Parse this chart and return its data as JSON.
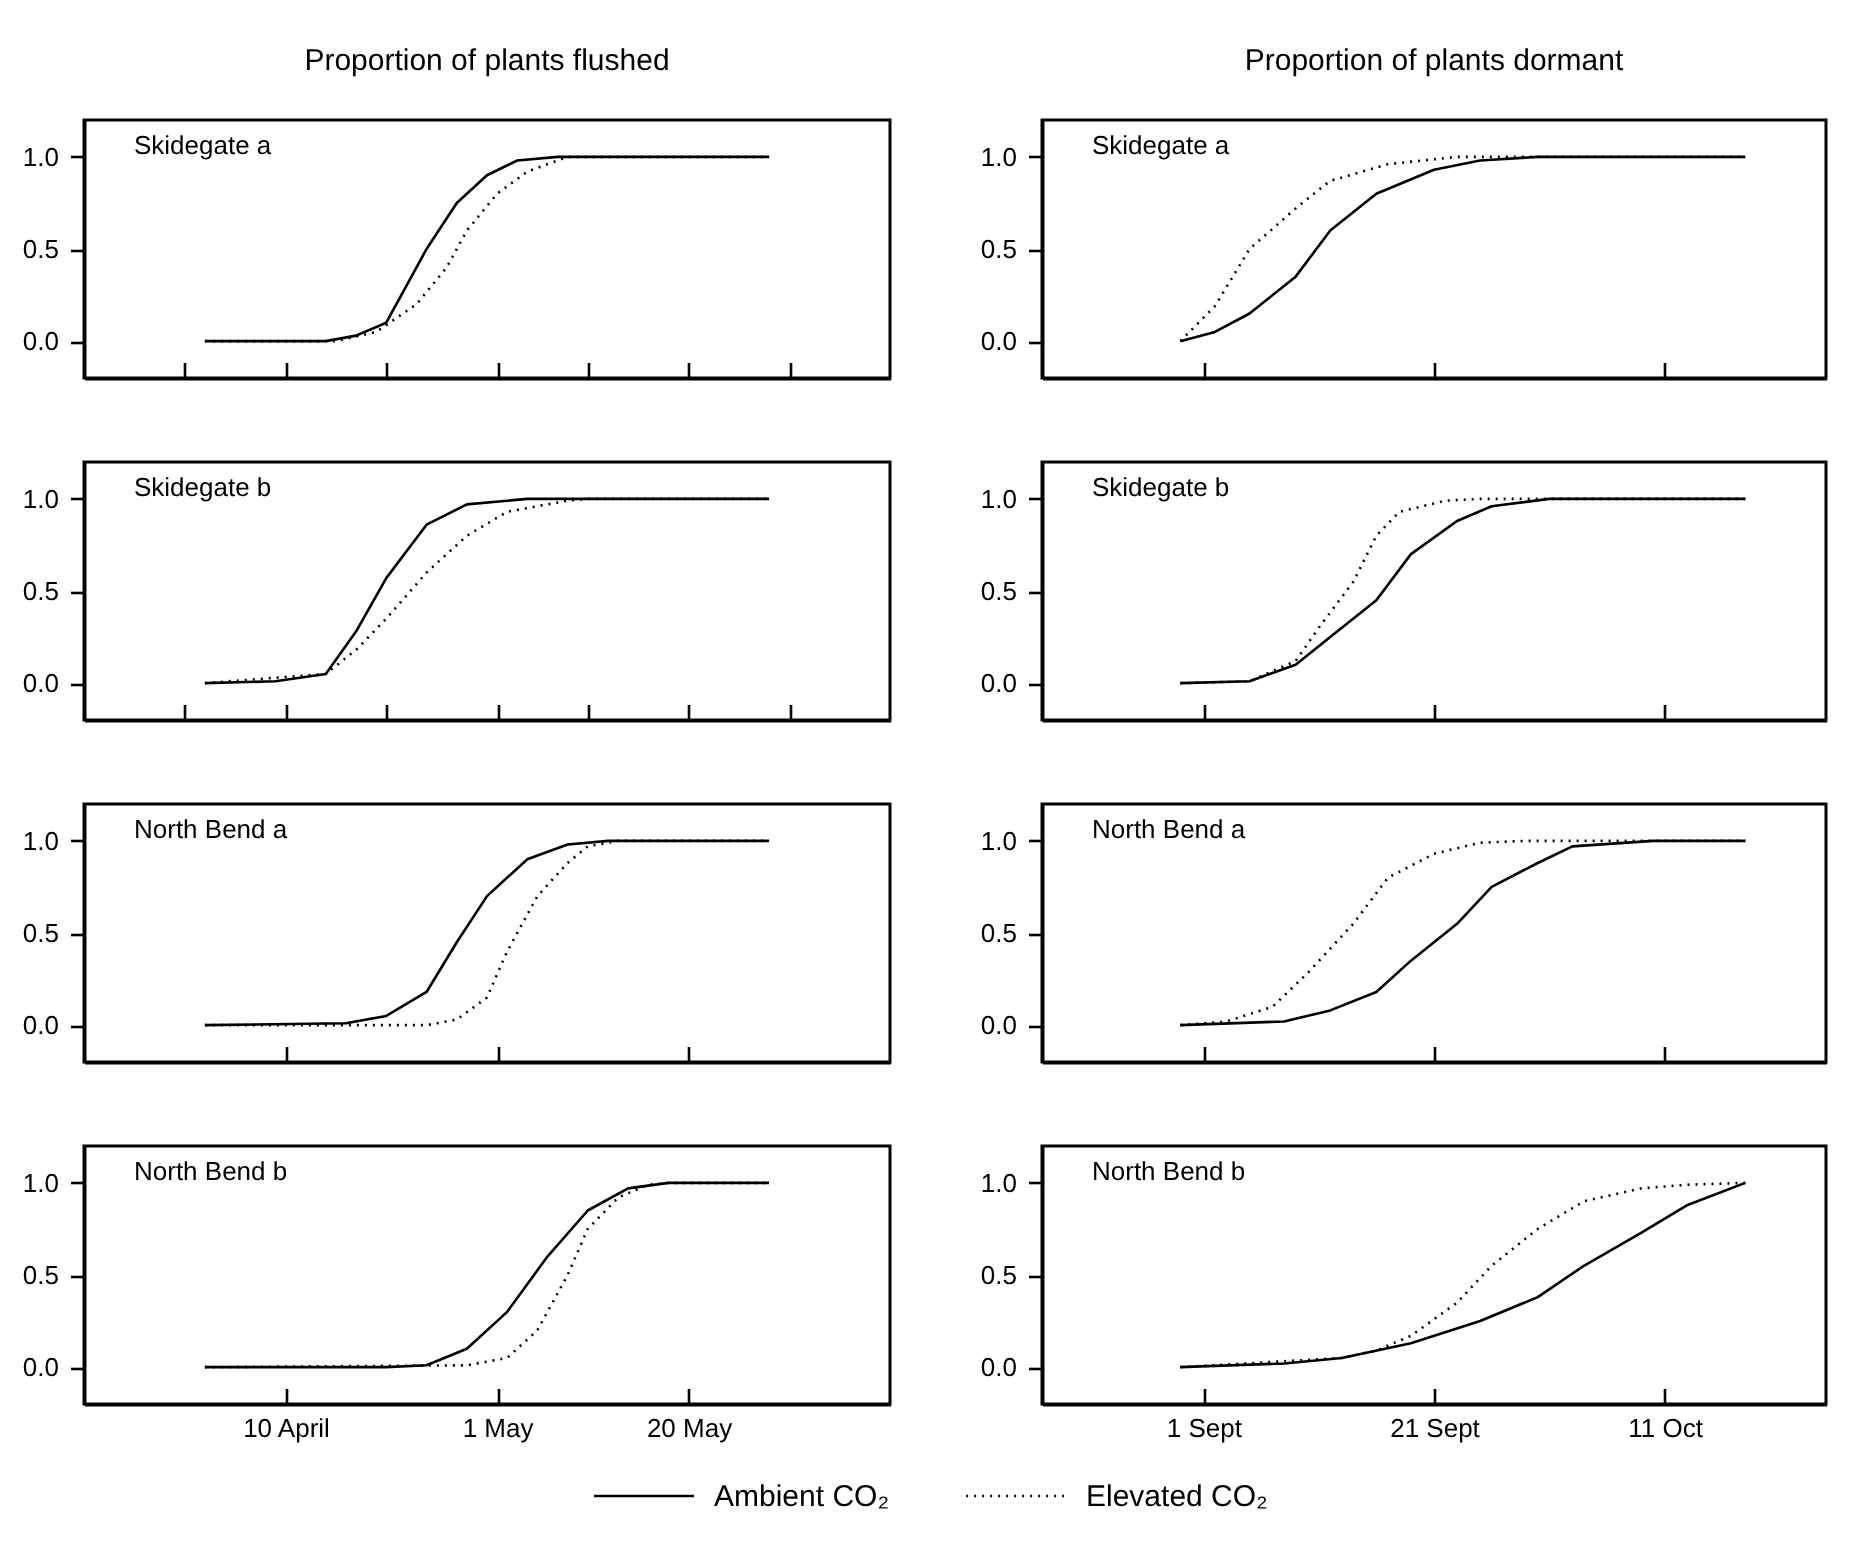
{
  "chart_data": [
    {
      "type": "line",
      "title": "Proportion of plants flushed",
      "annotations": [
        "Skidegate a"
      ],
      "legend": "bottom",
      "xlim": [
        "--03-21",
        "--06-09"
      ],
      "xticks": [
        {
          "value": "--03-31",
          "label": null
        },
        {
          "value": "--04-10",
          "label": "10 April"
        },
        {
          "value": "--04-20",
          "label": null
        },
        {
          "value": "--05-01",
          "label": "1 May"
        },
        {
          "value": "--05-10",
          "label": null
        },
        {
          "value": "--05-20",
          "label": "20 May"
        },
        {
          "value": "--05-30",
          "label": null
        }
      ],
      "tick_labels": "y",
      "ylim": [
        -0.2,
        1.2
      ],
      "yticks": [
        {
          "value": 0,
          "label": "0.0"
        },
        {
          "value": 0.5,
          "label": "0.5"
        },
        {
          "value": 1,
          "label": "1.0"
        }
      ],
      "series": [
        {
          "name": "Ambient CO₂",
          "color": "#000000",
          "line_style": "solid",
          "x": [
            "--04-02",
            "--04-14",
            "--04-17",
            "--04-20",
            "--04-22",
            "--04-24",
            "--04-27",
            "--04-30",
            "--05-03",
            "--05-07",
            "--05-28"
          ],
          "values": [
            0,
            0,
            0.03,
            0.1,
            0.3,
            0.5,
            0.75,
            0.9,
            0.98,
            1,
            1
          ]
        },
        {
          "name": "Elevated CO₂",
          "color": "#000000",
          "line_style": "dotted",
          "x": [
            "--04-02",
            "--04-15",
            "--04-19",
            "--04-23",
            "--04-26",
            "--04-28",
            "--05-01",
            "--05-04",
            "--05-08",
            "--05-28"
          ],
          "values": [
            0,
            0,
            0.05,
            0.2,
            0.4,
            0.6,
            0.8,
            0.92,
            1,
            1
          ]
        }
      ]
    },
    {
      "type": "line",
      "title": "Proportion of plants dormant",
      "annotations": [
        "Skidegate a"
      ],
      "xlim": [
        "--08-18",
        "--10-25"
      ],
      "xticks": [
        {
          "value": "--09-01",
          "label": "1 Sept"
        },
        {
          "value": "--09-21",
          "label": "21 Sept"
        },
        {
          "value": "--10-11",
          "label": "11 Oct"
        }
      ],
      "tick_labels": "y",
      "ylim": [
        -0.2,
        1.2
      ],
      "yticks": [
        {
          "value": 0,
          "label": "0.0"
        },
        {
          "value": 0.5,
          "label": "0.5"
        },
        {
          "value": 1,
          "label": "1.0"
        }
      ],
      "series": [
        {
          "color": "#000000",
          "line_style": "solid",
          "x": [
            "--08-30",
            "--09-02",
            "--09-05",
            "--09-09",
            "--09-12",
            "--09-16",
            "--09-21",
            "--09-25",
            "--09-30",
            "--10-18"
          ],
          "values": [
            0,
            0.05,
            0.15,
            0.35,
            0.6,
            0.8,
            0.93,
            0.98,
            1,
            1
          ]
        },
        {
          "color": "#000000",
          "line_style": "dotted",
          "x": [
            "--08-30",
            "--09-02",
            "--09-05",
            "--09-09",
            "--09-12",
            "--09-17",
            "--09-23",
            "--10-18"
          ],
          "values": [
            0,
            0.19,
            0.5,
            0.72,
            0.87,
            0.96,
            1,
            1
          ]
        }
      ]
    },
    {
      "type": "line",
      "annotations": [
        "Skidegate b"
      ],
      "xlim": [
        "--03-21",
        "--06-09"
      ],
      "xticks": [
        {
          "value": "--03-31",
          "label": null
        },
        {
          "value": "--04-10",
          "label": "10 April"
        },
        {
          "value": "--04-20",
          "label": null
        },
        {
          "value": "--05-01",
          "label": "1 May"
        },
        {
          "value": "--05-10",
          "label": null
        },
        {
          "value": "--05-20",
          "label": "20 May"
        },
        {
          "value": "--05-30",
          "label": null
        }
      ],
      "tick_labels": "y",
      "ylim": [
        -0.2,
        1.2
      ],
      "yticks": [
        {
          "value": 0,
          "label": "0.0"
        },
        {
          "value": 0.5,
          "label": "0.5"
        },
        {
          "value": 1,
          "label": "1.0"
        }
      ],
      "series": [
        {
          "color": "#000000",
          "line_style": "solid",
          "x": [
            "--04-02",
            "--04-09",
            "--04-14",
            "--04-17",
            "--04-20",
            "--04-24",
            "--04-28",
            "--05-04",
            "--05-28"
          ],
          "values": [
            0,
            0.01,
            0.05,
            0.28,
            0.57,
            0.86,
            0.97,
            1,
            1
          ]
        },
        {
          "color": "#000000",
          "line_style": "dotted",
          "x": [
            "--04-02",
            "--04-14",
            "--04-17",
            "--04-20",
            "--04-24",
            "--04-28",
            "--05-02",
            "--05-08",
            "--05-10",
            "--05-28"
          ],
          "values": [
            0,
            0.05,
            0.18,
            0.35,
            0.6,
            0.8,
            0.93,
            0.99,
            1,
            1
          ]
        }
      ]
    },
    {
      "type": "line",
      "annotations": [
        "Skidegate b"
      ],
      "xlim": [
        "--08-18",
        "--10-25"
      ],
      "xticks": [
        {
          "value": "--09-01",
          "label": "1 Sept"
        },
        {
          "value": "--09-21",
          "label": "21 Sept"
        },
        {
          "value": "--10-11",
          "label": "11 Oct"
        }
      ],
      "tick_labels": "y",
      "ylim": [
        -0.2,
        1.2
      ],
      "yticks": [
        {
          "value": 0,
          "label": "0.0"
        },
        {
          "value": 0.5,
          "label": "0.5"
        },
        {
          "value": 1,
          "label": "1.0"
        }
      ],
      "series": [
        {
          "color": "#000000",
          "line_style": "solid",
          "x": [
            "--08-30",
            "--09-05",
            "--09-09",
            "--09-12",
            "--09-16",
            "--09-19",
            "--09-23",
            "--09-26",
            "--10-01",
            "--10-18"
          ],
          "values": [
            0,
            0.01,
            0.1,
            0.25,
            0.45,
            0.7,
            0.88,
            0.96,
            1,
            1
          ]
        },
        {
          "color": "#000000",
          "line_style": "dotted",
          "x": [
            "--08-30",
            "--09-05",
            "--09-09",
            "--09-11",
            "--09-14",
            "--09-16",
            "--09-18",
            "--09-22",
            "--09-25",
            "--10-18"
          ],
          "values": [
            0,
            0.01,
            0.12,
            0.3,
            0.55,
            0.8,
            0.93,
            0.99,
            1,
            1
          ]
        }
      ]
    },
    {
      "type": "line",
      "annotations": [
        "North Bend a"
      ],
      "xlim": [
        "--03-21",
        "--06-09"
      ],
      "xticks": [
        {
          "value": "--04-10",
          "label": "10 April"
        },
        {
          "value": "--05-01",
          "label": "1 May"
        },
        {
          "value": "--05-20",
          "label": "20 May"
        }
      ],
      "tick_labels": "y",
      "ylim": [
        -0.2,
        1.2
      ],
      "yticks": [
        {
          "value": 0,
          "label": "0.0"
        },
        {
          "value": 0.5,
          "label": "0.5"
        },
        {
          "value": 1,
          "label": "1.0"
        }
      ],
      "series": [
        {
          "color": "#000000",
          "line_style": "solid",
          "x": [
            "--04-02",
            "--04-16",
            "--04-20",
            "--04-24",
            "--04-27",
            "--04-30",
            "--05-04",
            "--05-08",
            "--05-12",
            "--05-28"
          ],
          "values": [
            0,
            0.01,
            0.05,
            0.18,
            0.45,
            0.7,
            0.9,
            0.98,
            1,
            1
          ]
        },
        {
          "color": "#000000",
          "line_style": "dotted",
          "x": [
            "--04-02",
            "--04-16",
            "--04-24",
            "--04-27",
            "--04-30",
            "--05-02",
            "--05-05",
            "--05-08",
            "--05-10",
            "--05-13",
            "--05-28"
          ],
          "values": [
            0,
            0,
            0,
            0.03,
            0.15,
            0.4,
            0.7,
            0.88,
            0.97,
            1,
            1
          ]
        }
      ]
    },
    {
      "type": "line",
      "annotations": [
        "North Bend a"
      ],
      "xlim": [
        "--08-18",
        "--10-25"
      ],
      "xticks": [
        {
          "value": "--09-01",
          "label": "1 Sept"
        },
        {
          "value": "--09-21",
          "label": "21 Sept"
        },
        {
          "value": "--10-11",
          "label": "11 Oct"
        }
      ],
      "tick_labels": "y",
      "ylim": [
        -0.2,
        1.2
      ],
      "yticks": [
        {
          "value": 0,
          "label": "0.0"
        },
        {
          "value": 0.5,
          "label": "0.5"
        },
        {
          "value": 1,
          "label": "1.0"
        }
      ],
      "series": [
        {
          "color": "#000000",
          "line_style": "solid",
          "x": [
            "--08-30",
            "--09-08",
            "--09-12",
            "--09-16",
            "--09-19",
            "--09-23",
            "--09-26",
            "--09-30",
            "--10-03",
            "--10-10",
            "--10-18"
          ],
          "values": [
            0,
            0.02,
            0.08,
            0.18,
            0.35,
            0.55,
            0.75,
            0.88,
            0.97,
            1,
            1
          ]
        },
        {
          "color": "#000000",
          "line_style": "dotted",
          "x": [
            "--08-30",
            "--09-03",
            "--09-07",
            "--09-10",
            "--09-14",
            "--09-17",
            "--09-21",
            "--09-25",
            "--09-29",
            "--10-18"
          ],
          "values": [
            0,
            0.02,
            0.1,
            0.28,
            0.55,
            0.8,
            0.93,
            0.99,
            1,
            1
          ]
        }
      ]
    },
    {
      "type": "line",
      "annotations": [
        "North Bend b"
      ],
      "xlim": [
        "--03-21",
        "--06-09"
      ],
      "xticks": [
        {
          "value": "--04-10",
          "label": "10 April"
        },
        {
          "value": "--05-01",
          "label": "1 May"
        },
        {
          "value": "--05-20",
          "label": "20 May"
        }
      ],
      "ylim": [
        -0.2,
        1.2
      ],
      "yticks": [
        {
          "value": 0,
          "label": "0.0"
        },
        {
          "value": 0.5,
          "label": "0.5"
        },
        {
          "value": 1,
          "label": "1.0"
        }
      ],
      "series": [
        {
          "color": "#000000",
          "line_style": "solid",
          "x": [
            "--04-02",
            "--04-20",
            "--04-24",
            "--04-28",
            "--05-02",
            "--05-06",
            "--05-10",
            "--05-14",
            "--05-18",
            "--05-28"
          ],
          "values": [
            0,
            0,
            0.01,
            0.1,
            0.3,
            0.6,
            0.85,
            0.97,
            1,
            1
          ]
        },
        {
          "color": "#000000",
          "line_style": "dotted",
          "x": [
            "--04-02",
            "--04-28",
            "--05-02",
            "--05-05",
            "--05-08",
            "--05-10",
            "--05-13",
            "--05-16",
            "--05-18",
            "--05-28"
          ],
          "values": [
            0,
            0.01,
            0.05,
            0.2,
            0.5,
            0.75,
            0.92,
            0.99,
            1,
            1
          ]
        }
      ]
    },
    {
      "type": "line",
      "annotations": [
        "North Bend b"
      ],
      "xlim": [
        "--08-18",
        "--10-25"
      ],
      "xticks": [
        {
          "value": "--09-01",
          "label": "1 Sept"
        },
        {
          "value": "--09-21",
          "label": "21 Sept"
        },
        {
          "value": "--10-11",
          "label": "11 Oct"
        }
      ],
      "ylim": [
        -0.2,
        1.2
      ],
      "yticks": [
        {
          "value": 0,
          "label": "0.0"
        },
        {
          "value": 0.5,
          "label": "0.5"
        },
        {
          "value": 1,
          "label": "1.0"
        }
      ],
      "series": [
        {
          "color": "#000000",
          "line_style": "solid",
          "x": [
            "--08-30",
            "--09-08",
            "--09-13",
            "--09-19",
            "--09-25",
            "--09-30",
            "--10-04",
            "--10-09",
            "--10-13",
            "--10-18"
          ],
          "values": [
            0,
            0.02,
            0.05,
            0.13,
            0.25,
            0.38,
            0.55,
            0.73,
            0.88,
            1
          ]
        },
        {
          "color": "#000000",
          "line_style": "dotted",
          "x": [
            "--08-30",
            "--09-13",
            "--09-16",
            "--09-19",
            "--09-23",
            "--09-26",
            "--09-30",
            "--10-04",
            "--10-09",
            "--10-13",
            "--10-18"
          ],
          "values": [
            0,
            0.05,
            0.09,
            0.17,
            0.35,
            0.55,
            0.75,
            0.9,
            0.97,
            0.99,
            1
          ]
        }
      ]
    }
  ]
}
